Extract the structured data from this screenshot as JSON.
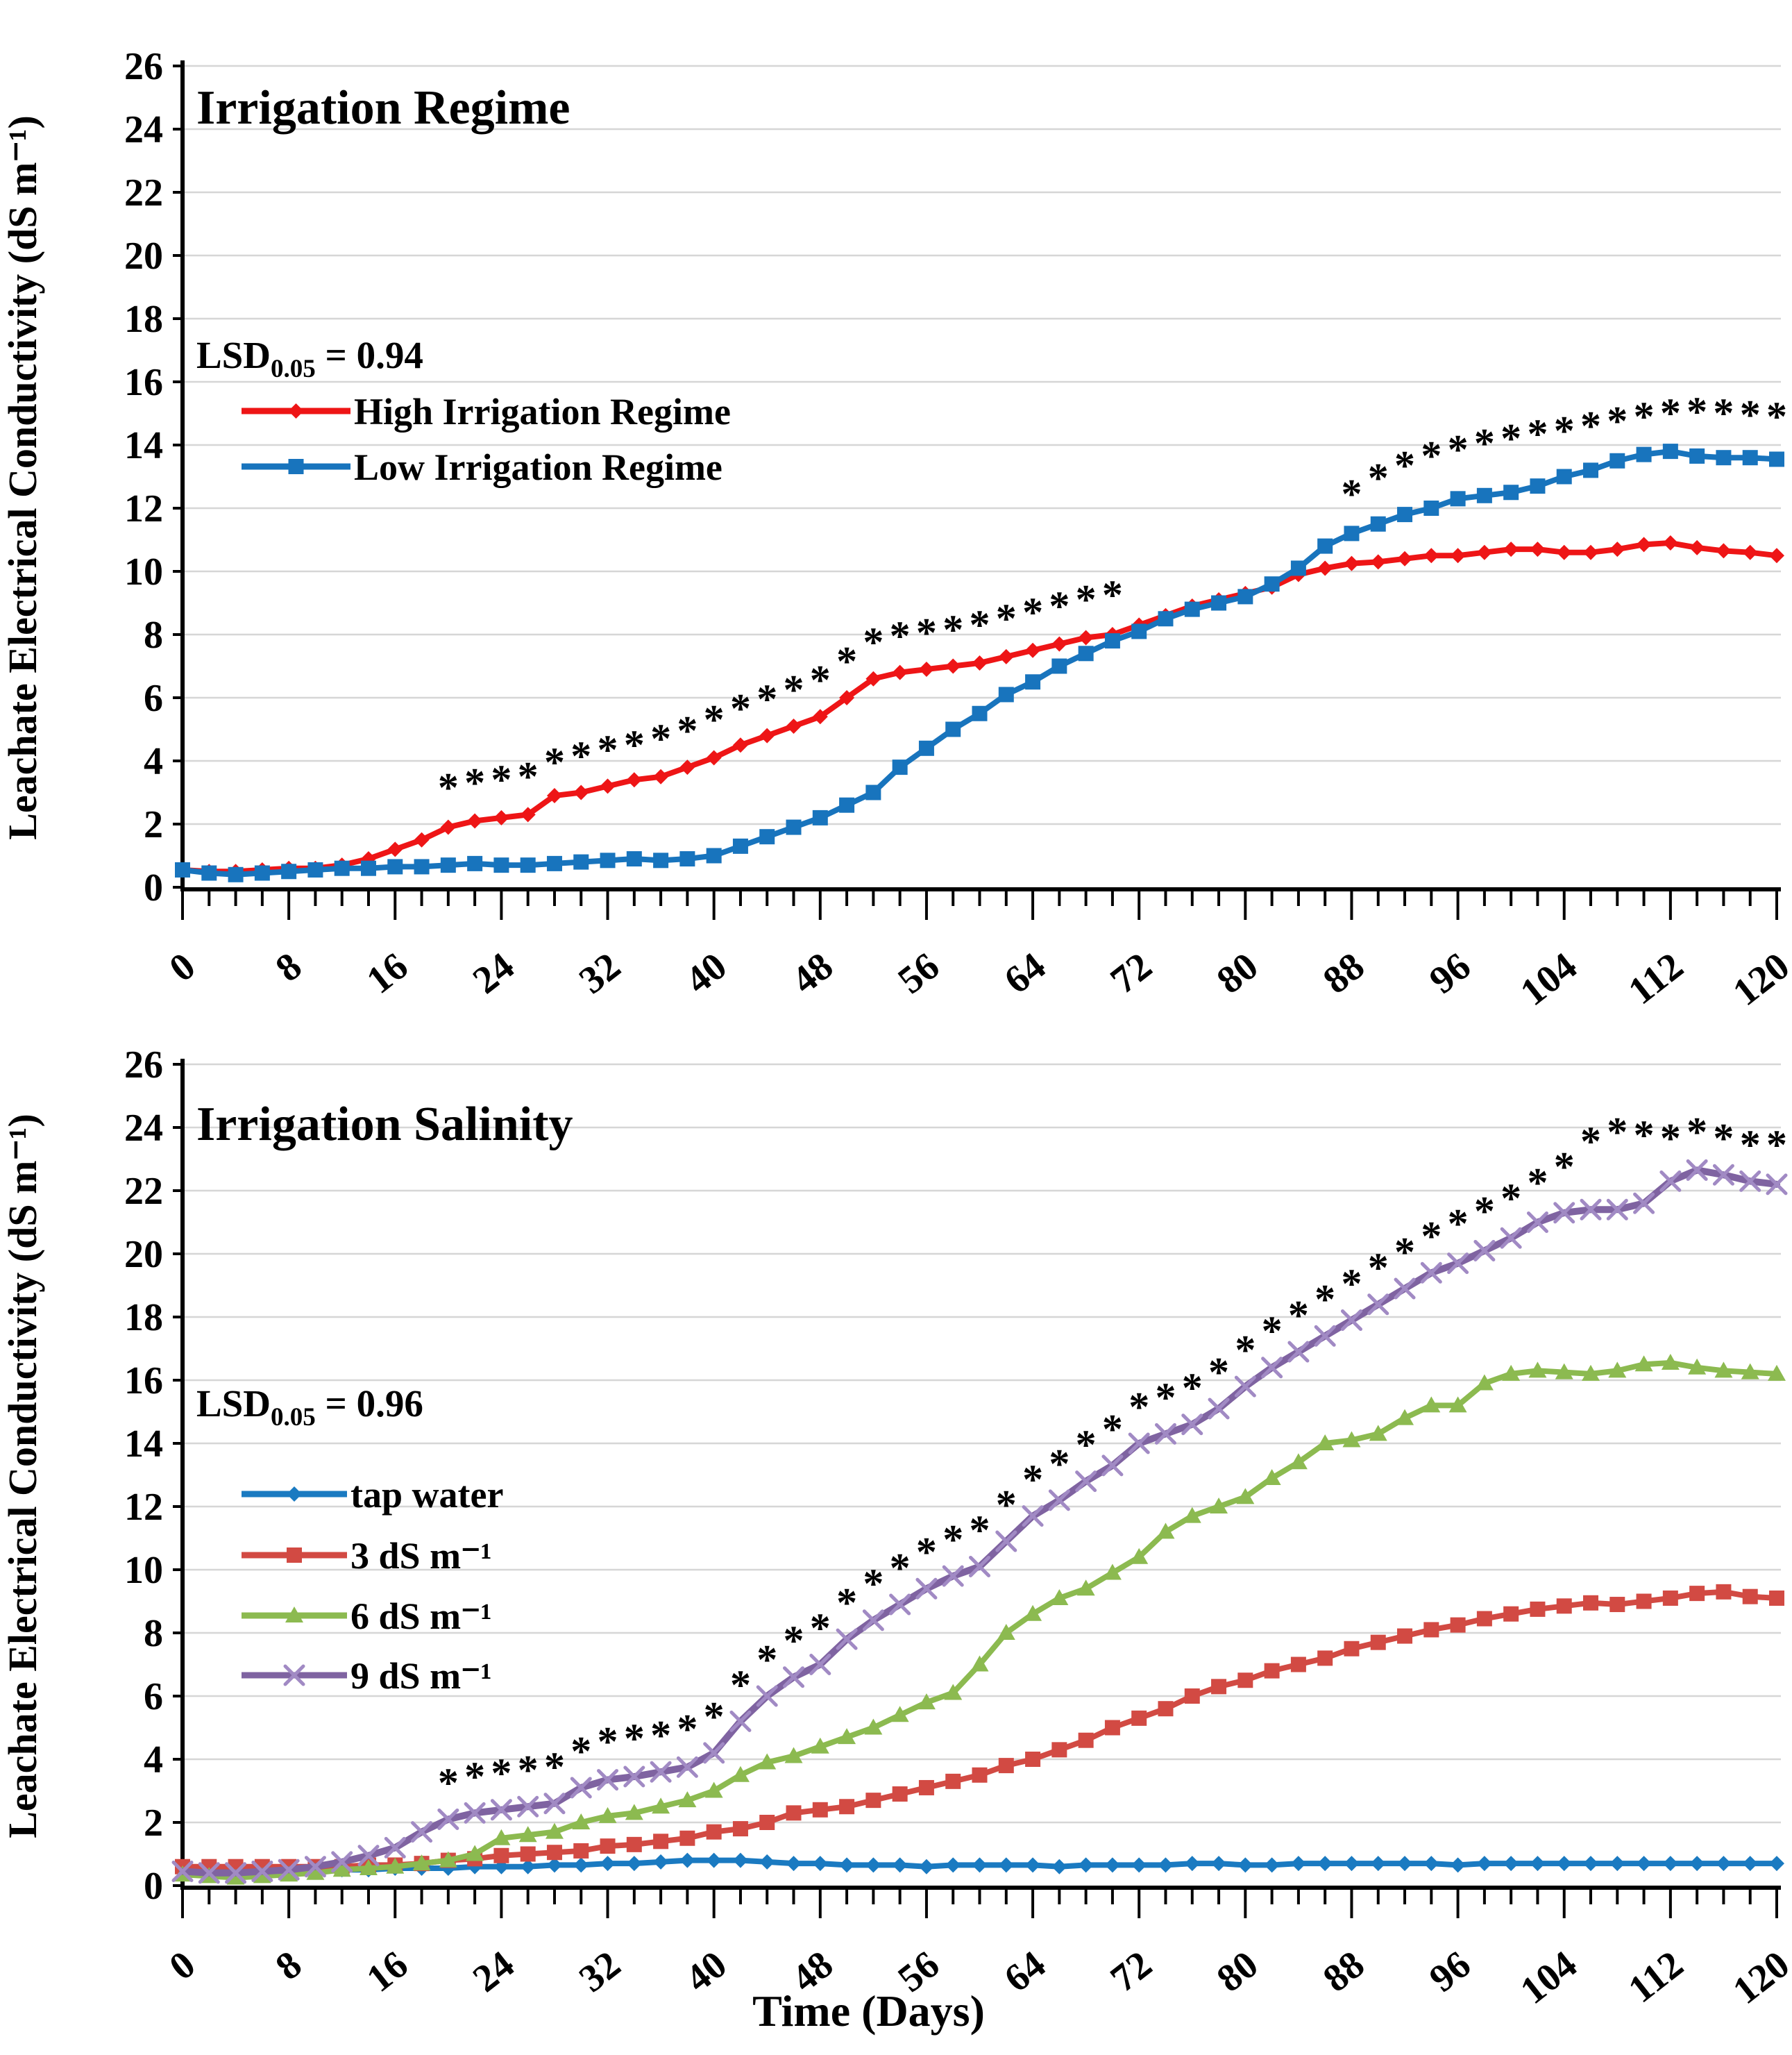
{
  "figure": {
    "background": "#ffffff",
    "x_axis_label": "Time (Days)",
    "y_axis_label": "Leachate Electrical Conductivity (dS m⁻¹)",
    "x_tick_labels": [
      0,
      8,
      16,
      24,
      32,
      40,
      48,
      56,
      64,
      72,
      80,
      88,
      96,
      104,
      112,
      120
    ],
    "y_tick_labels": [
      0,
      2,
      4,
      6,
      8,
      10,
      12,
      14,
      16,
      18,
      20,
      22,
      24,
      26
    ],
    "grid_color": "#d6d6d6",
    "axis_color": "#000000",
    "star_color": "#141414"
  },
  "chart_data": [
    {
      "type": "line",
      "title": "Irrigation Regime",
      "lsd": {
        "prefix": "LSD",
        "sub": "0.05",
        "rest": " = 0.94"
      },
      "xlabel": "",
      "ylabel": "Leachate Electrical Conductivity (dS m⁻¹)",
      "x_start": 0,
      "x_step": 2,
      "x_range": [
        0,
        120
      ],
      "ylim": [
        0,
        26
      ],
      "grid": true,
      "legend_position": "upper-left-inside",
      "series": [
        {
          "name": "High Irrigation Regime",
          "color": "#ee1516",
          "marker": "diamond",
          "values": [
            0.55,
            0.5,
            0.5,
            0.55,
            0.6,
            0.6,
            0.7,
            0.9,
            1.2,
            1.5,
            1.9,
            2.1,
            2.2,
            2.3,
            2.9,
            3.0,
            3.2,
            3.4,
            3.5,
            3.8,
            4.1,
            4.5,
            4.8,
            5.1,
            5.4,
            6.0,
            6.6,
            6.8,
            6.9,
            7.0,
            7.1,
            7.3,
            7.5,
            7.7,
            7.9,
            8.0,
            8.3,
            8.6,
            8.9,
            9.1,
            9.3,
            9.5,
            9.9,
            10.1,
            10.25,
            10.3,
            10.4,
            10.5,
            10.5,
            10.6,
            10.7,
            10.7,
            10.6,
            10.6,
            10.7,
            10.85,
            10.9,
            10.75,
            10.65,
            10.6,
            10.5
          ]
        },
        {
          "name": "Low Irrigation Regime",
          "color": "#1874bd",
          "marker": "square",
          "values": [
            0.55,
            0.45,
            0.4,
            0.45,
            0.5,
            0.55,
            0.6,
            0.6,
            0.65,
            0.65,
            0.7,
            0.75,
            0.7,
            0.7,
            0.75,
            0.8,
            0.85,
            0.9,
            0.85,
            0.9,
            1.0,
            1.3,
            1.6,
            1.9,
            2.2,
            2.6,
            3.0,
            3.8,
            4.4,
            5.0,
            5.5,
            6.1,
            6.5,
            7.0,
            7.4,
            7.8,
            8.1,
            8.5,
            8.8,
            9.0,
            9.2,
            9.6,
            10.1,
            10.8,
            11.2,
            11.5,
            11.8,
            12.0,
            12.3,
            12.4,
            12.5,
            12.7,
            13.0,
            13.2,
            13.5,
            13.7,
            13.8,
            13.65,
            13.6,
            13.6,
            13.55
          ]
        }
      ],
      "significance_stars": [
        {
          "start_day": 20,
          "step": 2,
          "values": [
            3.2,
            3.35,
            3.45,
            3.55,
            4.0,
            4.2,
            4.4,
            4.55,
            4.75,
            5.0,
            5.35,
            5.7,
            6.0,
            6.3,
            6.6,
            7.2,
            7.8,
            8.0,
            8.1,
            8.2,
            8.35,
            8.55,
            8.75,
            8.95,
            9.15,
            9.3
          ]
        },
        {
          "start_day": 88,
          "step": 2,
          "values": [
            12.5,
            13.0,
            13.4,
            13.7,
            13.9,
            14.1,
            14.25,
            14.4,
            14.5,
            14.65,
            14.8,
            14.95,
            15.05,
            15.1,
            15.05,
            15.0,
            14.95
          ]
        }
      ]
    },
    {
      "type": "line",
      "title": "Irrigation Salinity",
      "lsd": {
        "prefix": "LSD",
        "sub": "0.05",
        "rest": " = 0.96"
      },
      "xlabel": "Time (Days)",
      "ylabel": "Leachate Electrical Conductivity (dS m⁻¹)",
      "x_start": 0,
      "x_step": 2,
      "x_range": [
        0,
        120
      ],
      "ylim": [
        0,
        26
      ],
      "grid": true,
      "legend_position": "middle-left-inside",
      "series": [
        {
          "name": "tap water",
          "color": "#1a7ac1",
          "marker": "diamond",
          "values": [
            0.55,
            0.5,
            0.45,
            0.5,
            0.5,
            0.5,
            0.5,
            0.5,
            0.55,
            0.55,
            0.55,
            0.6,
            0.6,
            0.6,
            0.65,
            0.65,
            0.7,
            0.7,
            0.75,
            0.8,
            0.8,
            0.8,
            0.75,
            0.7,
            0.7,
            0.65,
            0.65,
            0.65,
            0.6,
            0.65,
            0.65,
            0.65,
            0.65,
            0.6,
            0.65,
            0.65,
            0.65,
            0.65,
            0.7,
            0.7,
            0.65,
            0.65,
            0.7,
            0.7,
            0.7,
            0.7,
            0.7,
            0.7,
            0.65,
            0.7,
            0.7,
            0.7,
            0.7,
            0.7,
            0.7,
            0.7,
            0.7,
            0.7,
            0.7,
            0.7,
            0.7
          ]
        },
        {
          "name": "3 dS m⁻¹",
          "color": "#d24a43",
          "marker": "square",
          "values": [
            0.6,
            0.6,
            0.6,
            0.6,
            0.6,
            0.6,
            0.6,
            0.65,
            0.65,
            0.7,
            0.8,
            0.85,
            0.95,
            1.0,
            1.05,
            1.1,
            1.25,
            1.3,
            1.4,
            1.5,
            1.7,
            1.8,
            2.0,
            2.3,
            2.4,
            2.5,
            2.7,
            2.9,
            3.1,
            3.3,
            3.5,
            3.8,
            4.0,
            4.3,
            4.6,
            5.0,
            5.3,
            5.6,
            6.0,
            6.3,
            6.5,
            6.8,
            7.0,
            7.2,
            7.5,
            7.7,
            7.9,
            8.1,
            8.25,
            8.45,
            8.6,
            8.75,
            8.85,
            8.95,
            8.9,
            9.0,
            9.1,
            9.25,
            9.3,
            9.15,
            9.1
          ]
        },
        {
          "name": "6 dS m⁻¹",
          "color": "#8cba50",
          "marker": "triangle",
          "values": [
            0.35,
            0.3,
            0.25,
            0.3,
            0.35,
            0.4,
            0.5,
            0.55,
            0.6,
            0.7,
            0.8,
            1.0,
            1.5,
            1.6,
            1.7,
            2.0,
            2.2,
            2.3,
            2.5,
            2.7,
            3.0,
            3.5,
            3.9,
            4.1,
            4.4,
            4.7,
            5.0,
            5.4,
            5.8,
            6.1,
            7.0,
            8.0,
            8.6,
            9.1,
            9.4,
            9.9,
            10.4,
            11.2,
            11.7,
            12.0,
            12.3,
            12.9,
            13.4,
            14.0,
            14.1,
            14.3,
            14.8,
            15.2,
            15.2,
            15.9,
            16.2,
            16.3,
            16.25,
            16.2,
            16.3,
            16.5,
            16.55,
            16.4,
            16.3,
            16.25,
            16.2
          ]
        },
        {
          "name": "9 dS m⁻¹",
          "color": "#7f63a1",
          "marker": "xmark",
          "marker_color": "#a18ac4",
          "values": [
            0.45,
            0.4,
            0.4,
            0.45,
            0.5,
            0.6,
            0.75,
            0.95,
            1.2,
            1.7,
            2.1,
            2.3,
            2.4,
            2.5,
            2.6,
            3.1,
            3.35,
            3.45,
            3.6,
            3.75,
            4.2,
            5.2,
            6.0,
            6.6,
            7.0,
            7.8,
            8.4,
            8.9,
            9.4,
            9.8,
            10.1,
            10.9,
            11.7,
            12.2,
            12.8,
            13.3,
            14.0,
            14.3,
            14.6,
            15.1,
            15.8,
            16.4,
            16.9,
            17.4,
            17.9,
            18.4,
            18.9,
            19.4,
            19.7,
            20.1,
            20.5,
            21.0,
            21.3,
            21.4,
            21.4,
            21.6,
            22.3,
            22.65,
            22.5,
            22.3,
            22.2
          ]
        }
      ],
      "significance_stars": [
        {
          "start_day": 20,
          "step": 2,
          "values": [
            3.3,
            3.5,
            3.6,
            3.7,
            3.8,
            4.3,
            4.6,
            4.7,
            4.8,
            5.0,
            5.4,
            6.4,
            7.2,
            7.8,
            8.2,
            9.0,
            9.6,
            10.1,
            10.6,
            11.0,
            11.3,
            12.1,
            12.9,
            13.4,
            14.0,
            14.5,
            15.2,
            15.5,
            15.8,
            16.3,
            17.0,
            17.6,
            18.1,
            18.6,
            19.1,
            19.6,
            20.1,
            20.6,
            21.0,
            21.4,
            21.8,
            22.3,
            22.8,
            23.6,
            23.9,
            23.8,
            23.7,
            23.9,
            23.7,
            23.5,
            23.5
          ]
        }
      ]
    }
  ]
}
